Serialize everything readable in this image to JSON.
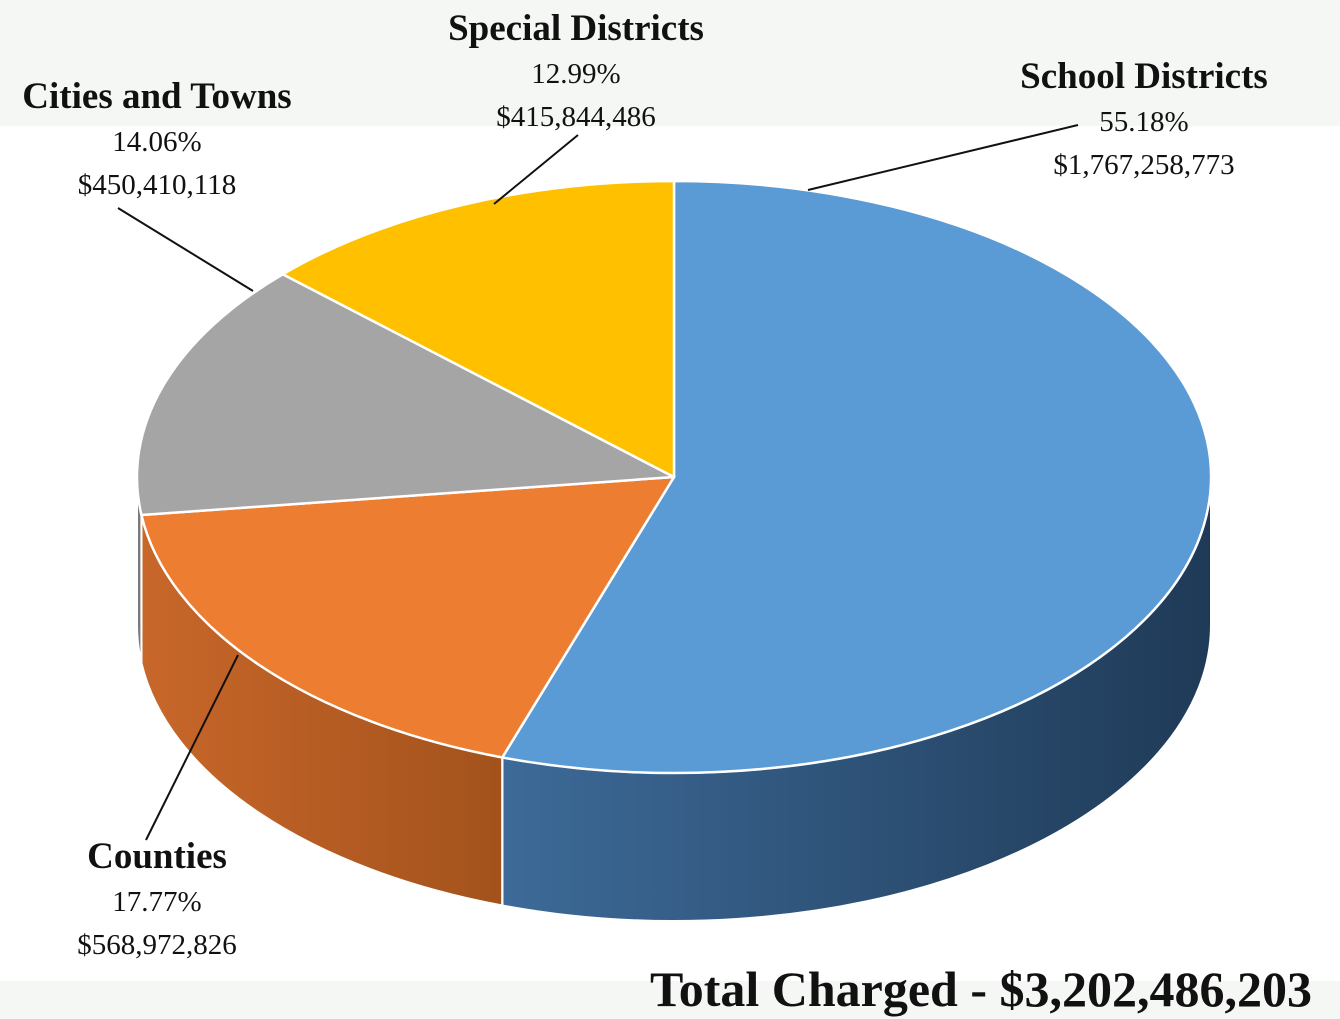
{
  "chart_data": {
    "type": "pie",
    "style": "3d",
    "slices": [
      {
        "label": "School Districts",
        "percent": "55.18%",
        "amount": "$1,767,258,773",
        "value": 55.18,
        "color": "#5b9bd5",
        "side_color": "#2f5377",
        "label_position": "top-right"
      },
      {
        "label": "Counties",
        "percent": "17.77%",
        "amount": "$568,972,826",
        "value": 17.77,
        "color": "#ed7d31",
        "side_color": "#b55a20",
        "label_position": "bottom-left"
      },
      {
        "label": "Cities and Towns",
        "percent": "14.06%",
        "amount": "$450,410,118",
        "value": 14.06,
        "color": "#a5a5a5",
        "side_color": "#7a7a7a",
        "label_position": "top-left"
      },
      {
        "label": "Special Districts",
        "percent": "12.99%",
        "amount": "$415,844,486",
        "value": 12.99,
        "color": "#ffc000",
        "side_color": "#bf9000",
        "label_position": "top"
      }
    ],
    "total_label": "Total Charged - $3,202,486,203",
    "legend": "none"
  }
}
